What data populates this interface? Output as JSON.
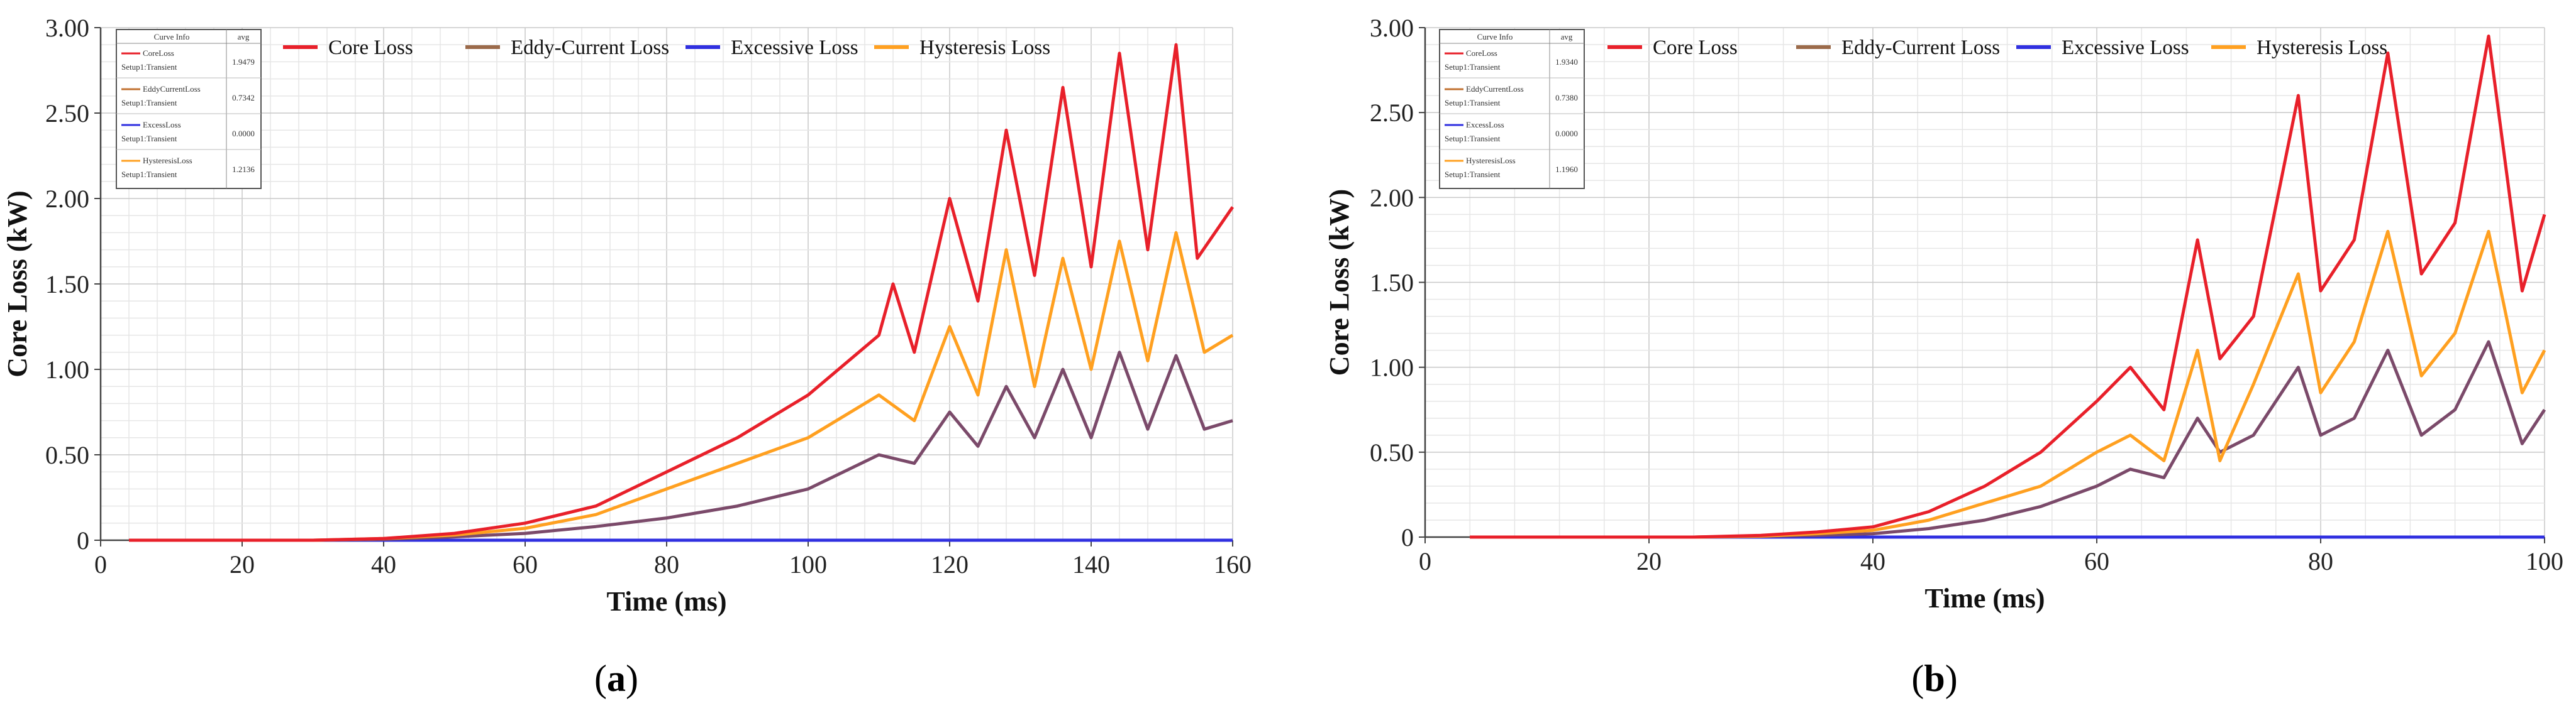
{
  "chart_data": [
    {
      "type": "line",
      "panel_label": "a",
      "xlabel": "Time (ms)",
      "ylabel": "Core Loss (kW)",
      "xlim": [
        0,
        160
      ],
      "ylim": [
        0,
        3.0
      ],
      "x_ticks": [
        "0",
        "20",
        "40",
        "60",
        "80",
        "100",
        "120",
        "140",
        "160"
      ],
      "y_ticks": [
        "0",
        "0.50",
        "1.00",
        "1.50",
        "2.00",
        "2.50",
        "3.00"
      ],
      "legend": [
        "Core Loss",
        "Eddy-Current Loss",
        "Excessive Loss",
        "Hysteresis Loss"
      ],
      "info_box": {
        "header": [
          "Curve Info",
          "avg"
        ],
        "rows": [
          {
            "name": "CoreLoss",
            "setup": "Setup1:Transient",
            "avg": "1.9479"
          },
          {
            "name": "EddyCurrentLoss",
            "setup": "Setup1:Transient",
            "avg": "0.7342"
          },
          {
            "name": "ExcessLoss",
            "setup": "Setup1:Transient",
            "avg": "0.0000"
          },
          {
            "name": "HysteresisLoss",
            "setup": "Setup1:Transient",
            "avg": "1.2136"
          }
        ]
      },
      "series": [
        {
          "name": "Core Loss",
          "color": "#e8202a",
          "x": [
            4,
            30,
            40,
            50,
            60,
            70,
            80,
            90,
            100,
            110,
            112,
            115,
            120,
            124,
            128,
            132,
            136,
            140,
            144,
            148,
            152,
            155,
            160
          ],
          "values": [
            0,
            0,
            0.01,
            0.04,
            0.1,
            0.2,
            0.4,
            0.6,
            0.85,
            1.2,
            1.5,
            1.1,
            2.0,
            1.4,
            2.4,
            1.55,
            2.65,
            1.6,
            2.85,
            1.7,
            2.9,
            1.65,
            1.95
          ]
        },
        {
          "name": "Hysteresis Loss",
          "color": "#ffa020",
          "x": [
            4,
            30,
            40,
            50,
            60,
            70,
            80,
            90,
            100,
            110,
            115,
            120,
            124,
            128,
            132,
            136,
            140,
            144,
            148,
            152,
            156,
            160
          ],
          "values": [
            0,
            0,
            0.01,
            0.03,
            0.07,
            0.15,
            0.3,
            0.45,
            0.6,
            0.85,
            0.7,
            1.25,
            0.85,
            1.7,
            0.9,
            1.65,
            1.0,
            1.75,
            1.05,
            1.8,
            1.1,
            1.2
          ]
        },
        {
          "name": "Eddy-Current Loss",
          "color": "#7b4a6a",
          "x": [
            4,
            30,
            40,
            50,
            60,
            70,
            80,
            90,
            100,
            110,
            115,
            120,
            124,
            128,
            132,
            136,
            140,
            144,
            148,
            152,
            156,
            160
          ],
          "values": [
            0,
            0,
            0.005,
            0.02,
            0.04,
            0.08,
            0.13,
            0.2,
            0.3,
            0.5,
            0.45,
            0.75,
            0.55,
            0.9,
            0.6,
            1.0,
            0.6,
            1.1,
            0.65,
            1.08,
            0.65,
            0.7
          ]
        },
        {
          "name": "Excessive Loss",
          "color": "#3030e0",
          "x": [
            4,
            160
          ],
          "values": [
            0,
            0
          ]
        }
      ]
    },
    {
      "type": "line",
      "panel_label": "b",
      "xlabel": "Time (ms)",
      "ylabel": "Core Loss (kW)",
      "xlim": [
        0,
        100
      ],
      "ylim": [
        0,
        3.0
      ],
      "x_ticks": [
        "0",
        "20",
        "40",
        "60",
        "80",
        "100"
      ],
      "y_ticks": [
        "0",
        "0.50",
        "1.00",
        "1.50",
        "2.00",
        "2.50",
        "3.00"
      ],
      "legend": [
        "Core Loss",
        "Eddy-Current Loss",
        "Excessive Loss",
        "Hysteresis Loss"
      ],
      "info_box": {
        "header": [
          "Curve Info",
          "avg"
        ],
        "rows": [
          {
            "name": "CoreLoss",
            "setup": "Setup1:Transient",
            "avg": "1.9340"
          },
          {
            "name": "EddyCurrentLoss",
            "setup": "Setup1:Transient",
            "avg": "0.7380"
          },
          {
            "name": "ExcessLoss",
            "setup": "Setup1:Transient",
            "avg": "0.0000"
          },
          {
            "name": "HysteresisLoss",
            "setup": "Setup1:Transient",
            "avg": "1.1960"
          }
        ]
      },
      "series": [
        {
          "name": "Core Loss",
          "color": "#e8202a",
          "x": [
            4,
            24,
            30,
            35,
            40,
            45,
            50,
            55,
            60,
            63,
            66,
            69,
            71,
            74,
            78,
            80,
            83,
            86,
            89,
            92,
            95,
            98,
            100
          ],
          "values": [
            0,
            0,
            0.01,
            0.03,
            0.06,
            0.15,
            0.3,
            0.5,
            0.8,
            1.0,
            0.75,
            1.75,
            1.05,
            1.3,
            2.6,
            1.45,
            1.75,
            2.85,
            1.55,
            1.85,
            2.95,
            1.45,
            1.9
          ]
        },
        {
          "name": "Hysteresis Loss",
          "color": "#ffa020",
          "x": [
            4,
            24,
            30,
            35,
            40,
            45,
            50,
            55,
            60,
            63,
            66,
            69,
            71,
            74,
            78,
            80,
            83,
            86,
            89,
            92,
            95,
            98,
            100
          ],
          "values": [
            0,
            0,
            0.005,
            0.02,
            0.04,
            0.1,
            0.2,
            0.3,
            0.5,
            0.6,
            0.45,
            1.1,
            0.45,
            0.9,
            1.55,
            0.85,
            1.15,
            1.8,
            0.95,
            1.2,
            1.8,
            0.85,
            1.1
          ]
        },
        {
          "name": "Eddy-Current Loss",
          "color": "#7b4a6a",
          "x": [
            4,
            24,
            30,
            35,
            40,
            45,
            50,
            55,
            60,
            63,
            66,
            69,
            71,
            74,
            78,
            80,
            83,
            86,
            89,
            92,
            95,
            98,
            100
          ],
          "values": [
            0,
            0,
            0.005,
            0.01,
            0.02,
            0.05,
            0.1,
            0.18,
            0.3,
            0.4,
            0.35,
            0.7,
            0.5,
            0.6,
            1.0,
            0.6,
            0.7,
            1.1,
            0.6,
            0.75,
            1.15,
            0.55,
            0.75
          ]
        },
        {
          "name": "Excessive Loss",
          "color": "#3030e0",
          "x": [
            4,
            100
          ],
          "values": [
            0,
            0
          ]
        }
      ]
    }
  ]
}
